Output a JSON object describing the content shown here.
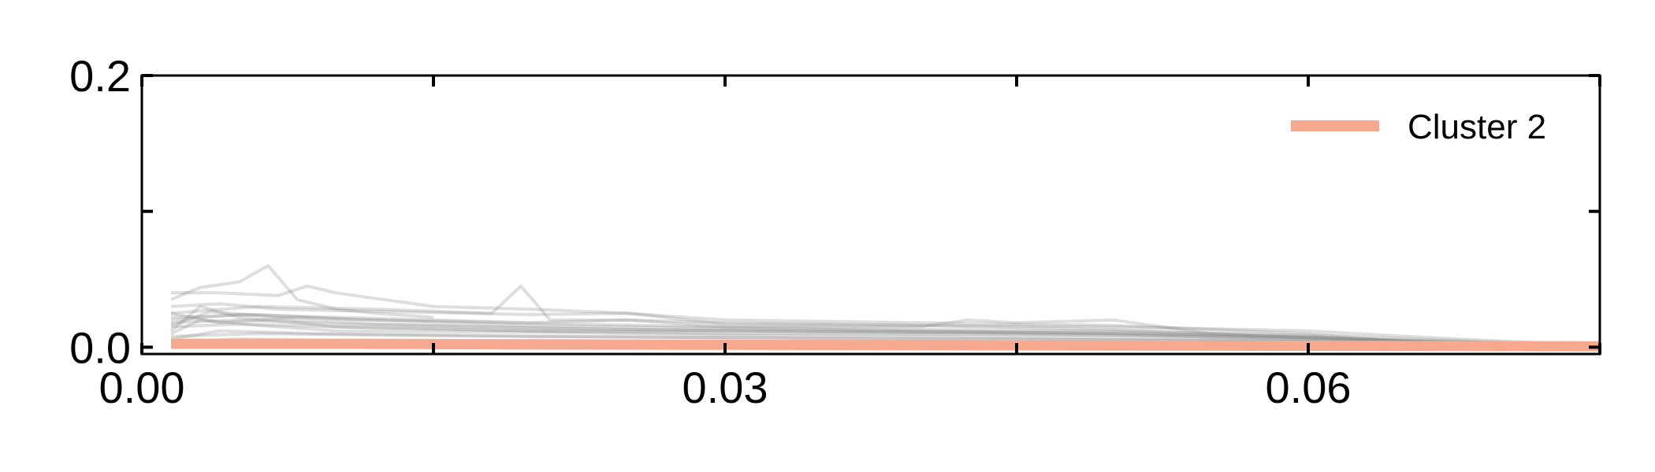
{
  "chart_data": {
    "type": "line",
    "title": "",
    "xlabel": "",
    "ylabel": "",
    "xlim": [
      0.0,
      0.075
    ],
    "ylim": [
      -0.005,
      0.2
    ],
    "x_ticks": [
      0.0,
      0.015,
      0.03,
      0.045,
      0.06,
      0.075
    ],
    "x_tick_labels": [
      "0.00",
      "",
      "0.03",
      "",
      "0.06",
      ""
    ],
    "y_ticks": [
      0.0,
      0.1,
      0.2
    ],
    "y_tick_labels": [
      "0.0",
      "",
      "0.2"
    ],
    "grid": false,
    "legend": {
      "placement": "top-right",
      "entries": [
        "Cluster 2"
      ]
    },
    "colors": {
      "highlight": "#f7a98f",
      "background_series": "#888888",
      "axes": "#000000"
    },
    "highlight_series": {
      "name": "Cluster 2",
      "x": [
        0.0015,
        0.01,
        0.02,
        0.03,
        0.04,
        0.05,
        0.06,
        0.07,
        0.075
      ],
      "y": [
        0.0025,
        0.0025,
        0.002,
        0.0018,
        0.0015,
        0.0012,
        0.001,
        0.0008,
        0.0006
      ]
    },
    "background_series_description": "many overlapping gray member curves",
    "background_series": [
      {
        "x": [
          0.0015,
          0.003,
          0.005,
          0.0065,
          0.008,
          0.01,
          0.012,
          0.015
        ],
        "y": [
          0.035,
          0.044,
          0.048,
          0.06,
          0.035,
          0.028,
          0.025,
          0.022
        ]
      },
      {
        "x": [
          0.0015,
          0.004,
          0.007,
          0.0085,
          0.01,
          0.015,
          0.02,
          0.025,
          0.03,
          0.04,
          0.05,
          0.06,
          0.065,
          0.075
        ],
        "y": [
          0.04,
          0.04,
          0.038,
          0.045,
          0.04,
          0.03,
          0.028,
          0.025,
          0.02,
          0.018,
          0.016,
          0.01,
          0.004,
          0.001
        ]
      },
      {
        "x": [
          0.0015,
          0.006,
          0.012,
          0.016,
          0.018,
          0.0195,
          0.021,
          0.025,
          0.03,
          0.04,
          0.05,
          0.065,
          0.075
        ],
        "y": [
          0.025,
          0.03,
          0.028,
          0.026,
          0.025,
          0.045,
          0.02,
          0.02,
          0.018,
          0.016,
          0.013,
          0.004,
          0.001
        ]
      },
      {
        "x": [
          0.0015,
          0.005,
          0.01,
          0.015,
          0.02,
          0.025,
          0.03,
          0.04,
          0.0425,
          0.045,
          0.05,
          0.055,
          0.065,
          0.075
        ],
        "y": [
          0.02,
          0.024,
          0.022,
          0.02,
          0.018,
          0.02,
          0.015,
          0.015,
          0.02,
          0.018,
          0.02,
          0.01,
          0.005,
          0.001
        ]
      },
      {
        "x": [
          0.0015,
          0.004,
          0.007,
          0.01,
          0.02,
          0.025,
          0.03,
          0.04,
          0.05,
          0.06,
          0.065,
          0.075
        ],
        "y": [
          0.03,
          0.032,
          0.028,
          0.027,
          0.024,
          0.025,
          0.017,
          0.016,
          0.015,
          0.012,
          0.008,
          0.001
        ]
      },
      {
        "x": [
          0.0015,
          0.005,
          0.01,
          0.02,
          0.03,
          0.04,
          0.05,
          0.06,
          0.065,
          0.075
        ],
        "y": [
          0.015,
          0.017,
          0.015,
          0.012,
          0.012,
          0.011,
          0.01,
          0.008,
          0.004,
          0.001
        ]
      },
      {
        "x": [
          0.0015,
          0.003,
          0.006,
          0.01,
          0.02,
          0.03,
          0.04,
          0.05,
          0.06,
          0.075
        ],
        "y": [
          0.01,
          0.02,
          0.016,
          0.012,
          0.011,
          0.009,
          0.008,
          0.007,
          0.005,
          0.001
        ]
      },
      {
        "x": [
          0.0015,
          0.004,
          0.008,
          0.012,
          0.016,
          0.02,
          0.03,
          0.04,
          0.05,
          0.06,
          0.075
        ],
        "y": [
          0.025,
          0.018,
          0.022,
          0.02,
          0.018,
          0.016,
          0.014,
          0.012,
          0.01,
          0.006,
          0.001
        ]
      },
      {
        "x": [
          0.0015,
          0.003,
          0.005,
          0.008,
          0.01,
          0.02,
          0.03,
          0.05,
          0.065,
          0.075
        ],
        "y": [
          0.012,
          0.03,
          0.022,
          0.018,
          0.015,
          0.012,
          0.01,
          0.009,
          0.004,
          0.001
        ]
      },
      {
        "x": [
          0.0015,
          0.006,
          0.012,
          0.02,
          0.03,
          0.045,
          0.06,
          0.075
        ],
        "y": [
          0.008,
          0.01,
          0.009,
          0.008,
          0.007,
          0.006,
          0.004,
          0.001
        ]
      },
      {
        "x": [
          0.0015,
          0.005,
          0.01,
          0.015,
          0.025,
          0.035,
          0.05,
          0.065,
          0.075
        ],
        "y": [
          0.018,
          0.02,
          0.017,
          0.016,
          0.013,
          0.012,
          0.011,
          0.005,
          0.001
        ]
      },
      {
        "x": [
          0.0015,
          0.004,
          0.009,
          0.014,
          0.02,
          0.03,
          0.04,
          0.055,
          0.07,
          0.075
        ],
        "y": [
          0.006,
          0.012,
          0.01,
          0.009,
          0.008,
          0.007,
          0.006,
          0.005,
          0.002,
          0.001
        ]
      },
      {
        "x": [
          0.0015,
          0.006,
          0.011,
          0.016,
          0.022,
          0.03,
          0.04,
          0.05,
          0.06,
          0.075
        ],
        "y": [
          0.022,
          0.024,
          0.02,
          0.019,
          0.017,
          0.015,
          0.013,
          0.012,
          0.009,
          0.001
        ]
      },
      {
        "x": [
          0.0015,
          0.005,
          0.01,
          0.02,
          0.03,
          0.04,
          0.06,
          0.075
        ],
        "y": [
          0.004,
          0.006,
          0.005,
          0.005,
          0.004,
          0.004,
          0.003,
          0.001
        ]
      },
      {
        "x": [
          0.0015,
          0.0035,
          0.0055,
          0.008,
          0.012,
          0.02,
          0.03,
          0.045,
          0.06,
          0.075
        ],
        "y": [
          0.016,
          0.026,
          0.024,
          0.02,
          0.017,
          0.014,
          0.012,
          0.01,
          0.007,
          0.001
        ]
      }
    ]
  }
}
